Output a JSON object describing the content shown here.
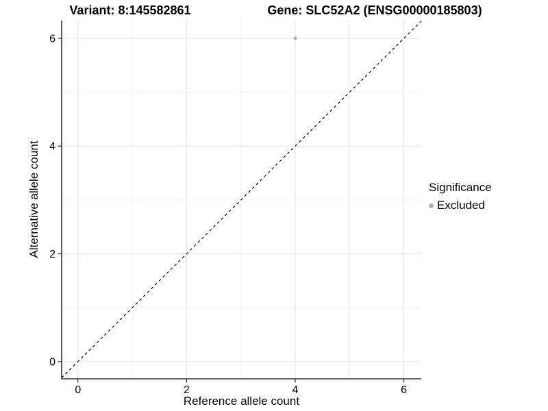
{
  "chart_data": {
    "type": "scatter",
    "title_left": "Variant: 8:145582861",
    "title_right": "Gene: SLC52A2 (ENSG00000185803)",
    "xlabel": "Reference allele count",
    "ylabel": "Alternative allele count",
    "xlim": [
      -0.3,
      6.32
    ],
    "ylim": [
      -0.32,
      6.33
    ],
    "x_ticks": [
      0,
      2,
      4,
      6
    ],
    "y_ticks": [
      0,
      2,
      4,
      6
    ],
    "grid_major": [
      0,
      2,
      4,
      6
    ],
    "grid_minor": [
      1,
      3,
      5
    ],
    "grid_on": true,
    "points": [
      {
        "x": 4,
        "y": 6,
        "series": "Excluded"
      }
    ],
    "reference_line": {
      "type": "identity y=x",
      "style": "dashed",
      "color": "#000000"
    },
    "legend": {
      "title": "Significance",
      "position": "right",
      "entries": [
        "Excluded"
      ]
    },
    "colors": {
      "point": "#b2b2b2",
      "grid_major": "#e3e3e3",
      "grid_minor": "#efefef",
      "axis": "#333333",
      "text": "#000000"
    }
  }
}
